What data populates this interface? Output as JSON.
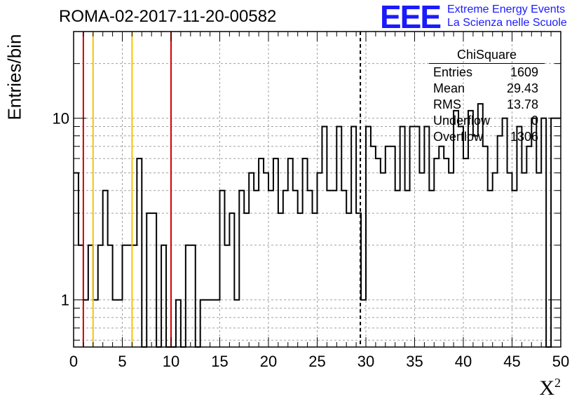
{
  "title": "ROMA-02-2017-11-20-00582",
  "logo": {
    "mark": "EEE",
    "line1": "Extreme Energy Events",
    "line2": "La Scienza nelle Scuole"
  },
  "stats": {
    "title": "ChiSquare",
    "rows": [
      {
        "label": "Entries",
        "value": "1609"
      },
      {
        "label": "Mean",
        "value": "29.43"
      },
      {
        "label": "RMS",
        "value": "13.78"
      },
      {
        "label": "Underflow",
        "value": "0"
      },
      {
        "label": "Overflow",
        "value": "1306"
      }
    ]
  },
  "colors": {
    "histogram": "#000000",
    "red_line": "#d40000",
    "yellow_line": "#f5c400",
    "grid": "#a0a0a0",
    "logo": "#1a1aff"
  },
  "chart_data": {
    "type": "histogram",
    "title": "ROMA-02-2017-11-20-00582",
    "xlabel": "X²",
    "ylabel": "Entries/bin",
    "xlim": [
      0,
      50
    ],
    "ylim": [
      0.55,
      30
    ],
    "yscale": "log",
    "grid": true,
    "legend": "stats box top-right",
    "x_ticks": [
      0,
      5,
      10,
      15,
      20,
      25,
      30,
      35,
      40,
      45,
      50
    ],
    "y_ticks": [
      1,
      10
    ],
    "bin_width": 0.5,
    "bin_edges_start": 0,
    "counts": [
      5,
      2,
      1,
      2,
      1,
      2,
      4,
      2,
      1,
      1,
      2,
      2,
      2,
      6,
      0,
      3,
      3,
      0,
      2,
      0,
      0,
      1,
      0,
      2,
      2,
      0,
      1,
      1,
      1,
      1,
      4,
      2,
      3,
      1,
      4,
      3,
      5,
      4,
      6,
      5,
      4,
      6,
      3,
      4,
      6,
      4,
      3,
      6,
      4,
      3,
      5,
      9,
      4,
      4,
      9,
      4,
      3,
      9,
      3,
      1,
      9,
      7,
      6,
      5,
      7,
      7,
      4,
      9,
      4,
      9,
      9,
      5,
      9,
      4,
      6,
      7,
      6,
      5,
      11,
      9,
      6,
      11,
      8,
      12,
      7,
      4,
      5,
      8,
      10,
      5,
      4,
      9,
      5,
      7,
      10,
      5,
      10,
      0,
      10,
      10
    ],
    "vertical_lines": [
      {
        "x": 1.0,
        "color": "red",
        "style": "solid"
      },
      {
        "x": 2.0,
        "color": "yellow",
        "style": "solid"
      },
      {
        "x": 6.0,
        "color": "yellow",
        "style": "solid"
      },
      {
        "x": 10.0,
        "color": "red",
        "style": "solid"
      },
      {
        "x": 29.43,
        "color": "black",
        "style": "dashed"
      }
    ]
  }
}
